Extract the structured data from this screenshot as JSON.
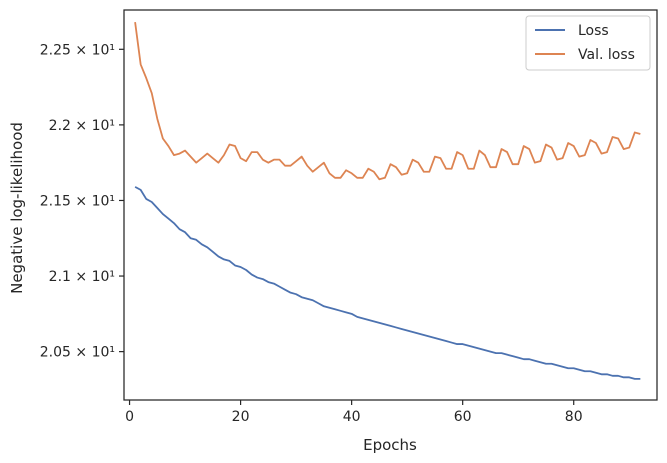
{
  "chart_data": {
    "type": "line",
    "xlabel": "Epochs",
    "ylabel": "Negative log-likelihood",
    "xlim": [
      -1,
      95
    ],
    "ylim": [
      20.18,
      22.76
    ],
    "x_ticks": [
      0,
      20,
      40,
      60,
      80
    ],
    "x_tick_labels": [
      "0",
      "20",
      "40",
      "60",
      "80"
    ],
    "y_ticks": [
      20.5,
      21.0,
      21.5,
      22.0,
      22.5
    ],
    "y_tick_labels": [
      "2.05 × 10¹",
      "2.1 × 10¹",
      "2.15 × 10¹",
      "2.2 × 10¹",
      "2.25 × 10¹"
    ],
    "grid": false,
    "legend_position": "top-right",
    "series": [
      {
        "name": "Loss",
        "color": "#4c72b0",
        "x": [
          1,
          2,
          3,
          4,
          5,
          6,
          7,
          8,
          9,
          10,
          11,
          12,
          13,
          14,
          15,
          16,
          17,
          18,
          19,
          20,
          21,
          22,
          23,
          24,
          25,
          26,
          27,
          28,
          29,
          30,
          31,
          32,
          33,
          34,
          35,
          36,
          37,
          38,
          39,
          40,
          41,
          42,
          43,
          44,
          45,
          46,
          47,
          48,
          49,
          50,
          51,
          52,
          53,
          54,
          55,
          56,
          57,
          58,
          59,
          60,
          61,
          62,
          63,
          64,
          65,
          66,
          67,
          68,
          69,
          70,
          71,
          72,
          73,
          74,
          75,
          76,
          77,
          78,
          79,
          80,
          81,
          82,
          83,
          84,
          85,
          86,
          87,
          88,
          89,
          90,
          91,
          92
        ],
        "y": [
          21.59,
          21.57,
          21.51,
          21.49,
          21.45,
          21.41,
          21.38,
          21.35,
          21.31,
          21.29,
          21.25,
          21.24,
          21.21,
          21.19,
          21.16,
          21.13,
          21.11,
          21.1,
          21.07,
          21.06,
          21.04,
          21.01,
          20.99,
          20.98,
          20.96,
          20.95,
          20.93,
          20.91,
          20.89,
          20.88,
          20.86,
          20.85,
          20.84,
          20.82,
          20.8,
          20.79,
          20.78,
          20.77,
          20.76,
          20.75,
          20.73,
          20.72,
          20.71,
          20.7,
          20.69,
          20.68,
          20.67,
          20.66,
          20.65,
          20.64,
          20.63,
          20.62,
          20.61,
          20.6,
          20.59,
          20.58,
          20.57,
          20.56,
          20.55,
          20.55,
          20.54,
          20.53,
          20.52,
          20.51,
          20.5,
          20.49,
          20.49,
          20.48,
          20.47,
          20.46,
          20.45,
          20.45,
          20.44,
          20.43,
          20.42,
          20.42,
          20.41,
          20.4,
          20.39,
          20.39,
          20.38,
          20.37,
          20.37,
          20.36,
          20.35,
          20.35,
          20.34,
          20.34,
          20.33,
          20.33,
          20.32,
          20.32
        ]
      },
      {
        "name": "Val. loss",
        "color": "#dd8452",
        "x": [
          1,
          2,
          3,
          4,
          5,
          6,
          7,
          8,
          9,
          10,
          11,
          12,
          13,
          14,
          15,
          16,
          17,
          18,
          19,
          20,
          21,
          22,
          23,
          24,
          25,
          26,
          27,
          28,
          29,
          30,
          31,
          32,
          33,
          34,
          35,
          36,
          37,
          38,
          39,
          40,
          41,
          42,
          43,
          44,
          45,
          46,
          47,
          48,
          49,
          50,
          51,
          52,
          53,
          54,
          55,
          56,
          57,
          58,
          59,
          60,
          61,
          62,
          63,
          64,
          65,
          66,
          67,
          68,
          69,
          70,
          71,
          72,
          73,
          74,
          75,
          76,
          77,
          78,
          79,
          80,
          81,
          82,
          83,
          84,
          85,
          86,
          87,
          88,
          89,
          90,
          91,
          92
        ],
        "y": [
          22.68,
          22.4,
          22.31,
          22.21,
          22.04,
          21.91,
          21.86,
          21.8,
          21.81,
          21.83,
          21.79,
          21.75,
          21.78,
          21.81,
          21.78,
          21.75,
          21.8,
          21.87,
          21.86,
          21.78,
          21.76,
          21.82,
          21.82,
          21.77,
          21.75,
          21.77,
          21.77,
          21.73,
          21.73,
          21.76,
          21.79,
          21.73,
          21.69,
          21.72,
          21.75,
          21.68,
          21.65,
          21.65,
          21.7,
          21.68,
          21.65,
          21.65,
          21.71,
          21.69,
          21.64,
          21.65,
          21.74,
          21.72,
          21.67,
          21.68,
          21.77,
          21.75,
          21.69,
          21.69,
          21.79,
          21.78,
          21.71,
          21.71,
          21.82,
          21.8,
          21.71,
          21.71,
          21.83,
          21.8,
          21.72,
          21.72,
          21.84,
          21.82,
          21.74,
          21.74,
          21.86,
          21.84,
          21.75,
          21.76,
          21.87,
          21.85,
          21.77,
          21.78,
          21.88,
          21.86,
          21.79,
          21.8,
          21.9,
          21.88,
          21.81,
          21.82,
          21.92,
          21.91,
          21.84,
          21.85,
          21.95,
          21.94
        ]
      }
    ]
  }
}
